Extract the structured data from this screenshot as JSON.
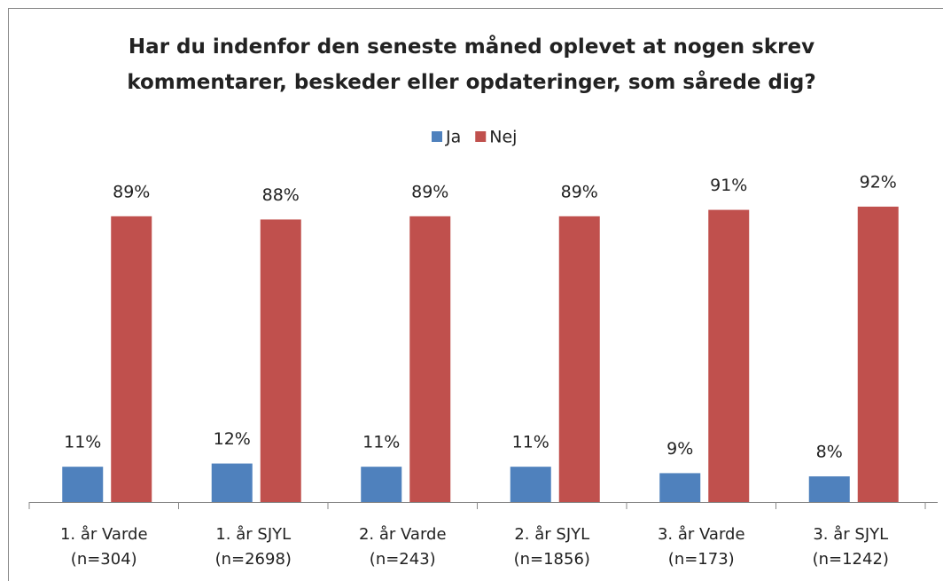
{
  "chart_data": {
    "type": "bar",
    "title": "Har du indenfor den seneste måned oplevet at nogen skrev\nkommentarer, beskeder eller opdateringer, som sårede dig?",
    "categories": [
      "1. år Varde\n(n=304)",
      "1. år SJYL\n(n=2698)",
      "2. år Varde\n(n=243)",
      "2. år SJYL\n(n=1856)",
      "3. år Varde\n(n=173)",
      "3. år SJYL\n(n=1242)"
    ],
    "series": [
      {
        "name": "Ja",
        "color": "#4f81bd",
        "values": [
          11,
          12,
          11,
          11,
          9,
          8
        ],
        "value_labels": [
          "11%",
          "12%",
          "11%",
          "11%",
          "9%",
          "8%"
        ]
      },
      {
        "name": "Nej",
        "color": "#c0504d",
        "values": [
          89,
          88,
          89,
          89,
          91,
          92
        ],
        "value_labels": [
          "89%",
          "88%",
          "89%",
          "89%",
          "91%",
          "92%"
        ]
      }
    ],
    "legend": "top"
  }
}
